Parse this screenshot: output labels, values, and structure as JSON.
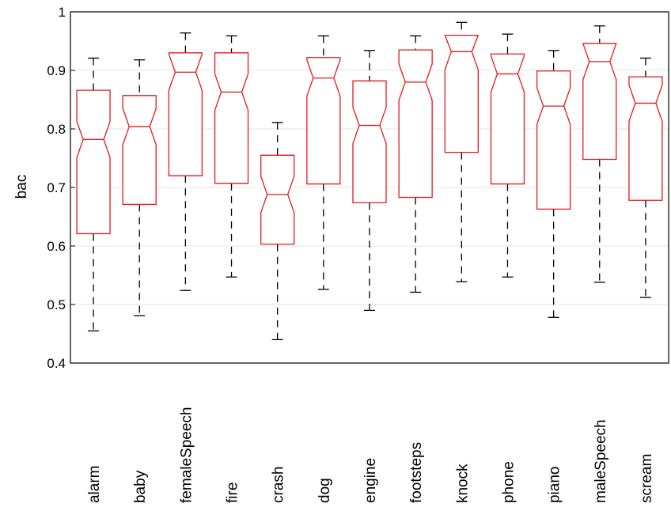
{
  "chart_data": {
    "type": "box",
    "ylabel": "bac",
    "xlabel": "",
    "ylim": [
      0.4,
      1.0
    ],
    "yticks": [
      0.4,
      0.5,
      0.6,
      0.7,
      0.8,
      0.9,
      1.0
    ],
    "ytick_labels": [
      "0.4",
      "0.5",
      "0.6",
      "0.7",
      "0.8",
      "0.9",
      "1"
    ],
    "grid": true,
    "notched": true,
    "box_color": "#e31a1c",
    "whisker_color": "#000000",
    "categories": [
      "alarm",
      "baby",
      "femaleSpeech",
      "fire",
      "crash",
      "dog",
      "engine",
      "footsteps",
      "knock",
      "phone",
      "piano",
      "maleSpeech",
      "scream"
    ],
    "boxes": [
      {
        "min": 0.455,
        "q1": 0.621,
        "median": 0.782,
        "q3": 0.866,
        "max": 0.921
      },
      {
        "min": 0.481,
        "q1": 0.671,
        "median": 0.804,
        "q3": 0.857,
        "max": 0.918
      },
      {
        "min": 0.524,
        "q1": 0.72,
        "median": 0.897,
        "q3": 0.93,
        "max": 0.964
      },
      {
        "min": 0.547,
        "q1": 0.707,
        "median": 0.863,
        "q3": 0.93,
        "max": 0.959
      },
      {
        "min": 0.44,
        "q1": 0.603,
        "median": 0.688,
        "q3": 0.755,
        "max": 0.811
      },
      {
        "min": 0.526,
        "q1": 0.706,
        "median": 0.887,
        "q3": 0.922,
        "max": 0.959
      },
      {
        "min": 0.49,
        "q1": 0.674,
        "median": 0.806,
        "q3": 0.882,
        "max": 0.934
      },
      {
        "min": 0.521,
        "q1": 0.683,
        "median": 0.88,
        "q3": 0.935,
        "max": 0.959
      },
      {
        "min": 0.539,
        "q1": 0.76,
        "median": 0.932,
        "q3": 0.96,
        "max": 0.982
      },
      {
        "min": 0.547,
        "q1": 0.706,
        "median": 0.894,
        "q3": 0.928,
        "max": 0.962
      },
      {
        "min": 0.478,
        "q1": 0.663,
        "median": 0.839,
        "q3": 0.899,
        "max": 0.934
      },
      {
        "min": 0.538,
        "q1": 0.748,
        "median": 0.915,
        "q3": 0.946,
        "max": 0.976
      },
      {
        "min": 0.512,
        "q1": 0.678,
        "median": 0.844,
        "q3": 0.889,
        "max": 0.921
      }
    ],
    "notch_half_width": 0.031
  }
}
